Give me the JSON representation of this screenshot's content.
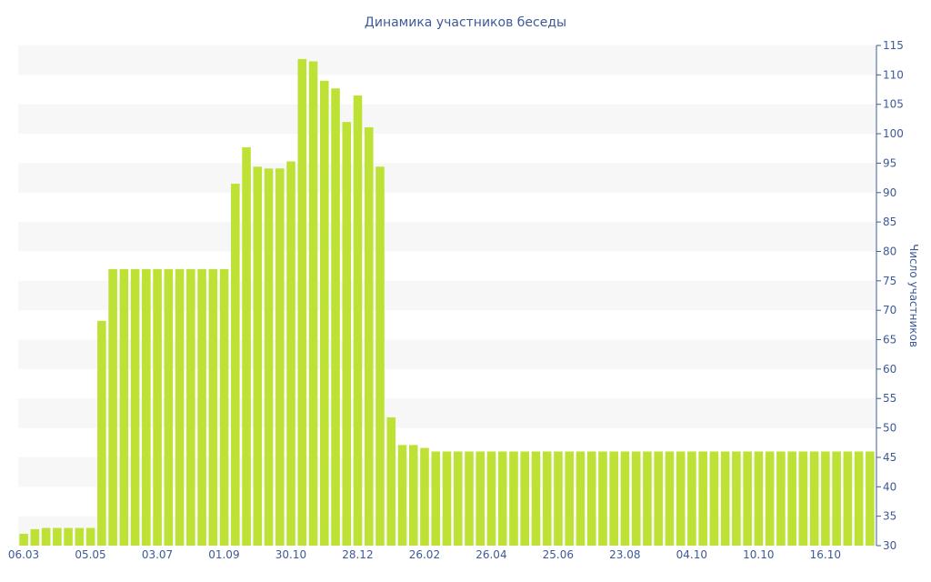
{
  "chart_data": {
    "type": "bar",
    "title": "Динамика участников беседы",
    "ylabel": "Число участников",
    "xlabel": "",
    "ylim": [
      30,
      115
    ],
    "y_ticks": [
      30,
      35,
      40,
      45,
      50,
      55,
      60,
      65,
      70,
      75,
      80,
      85,
      90,
      95,
      100,
      105,
      110,
      115
    ],
    "y_axis_position": "right",
    "grid": "alternating horizontal bands",
    "bar_color": "#bde134",
    "x_tick_labels": [
      {
        "label": "06.03",
        "index": 0
      },
      {
        "label": "05.05",
        "index": 6
      },
      {
        "label": "03.07",
        "index": 12
      },
      {
        "label": "01.09",
        "index": 18
      },
      {
        "label": "30.10",
        "index": 24
      },
      {
        "label": "28.12",
        "index": 30
      },
      {
        "label": "26.02",
        "index": 36
      },
      {
        "label": "26.04",
        "index": 42
      },
      {
        "label": "25.06",
        "index": 48
      },
      {
        "label": "23.08",
        "index": 54
      },
      {
        "label": "04.10",
        "index": 60
      },
      {
        "label": "10.10",
        "index": 66
      },
      {
        "label": "16.10",
        "index": 72
      }
    ],
    "values": [
      32,
      32.8,
      33,
      33,
      33,
      33,
      33,
      68.2,
      77,
      77,
      77,
      77,
      77,
      77,
      77,
      77,
      77,
      77,
      77,
      91.5,
      97.7,
      94.4,
      94.1,
      94.1,
      95.3,
      112.7,
      112.3,
      109,
      107.7,
      102,
      106.5,
      101.1,
      94.4,
      51.8,
      47.1,
      47.1,
      46.6,
      46,
      46,
      46,
      46,
      46,
      46,
      46,
      46,
      46,
      46,
      46,
      46,
      46,
      46,
      46,
      46,
      46,
      46,
      46,
      46,
      46,
      46,
      46,
      46,
      46,
      46,
      46,
      46,
      46,
      46,
      46,
      46,
      46,
      46,
      46,
      46,
      46,
      46,
      46,
      46
    ]
  }
}
